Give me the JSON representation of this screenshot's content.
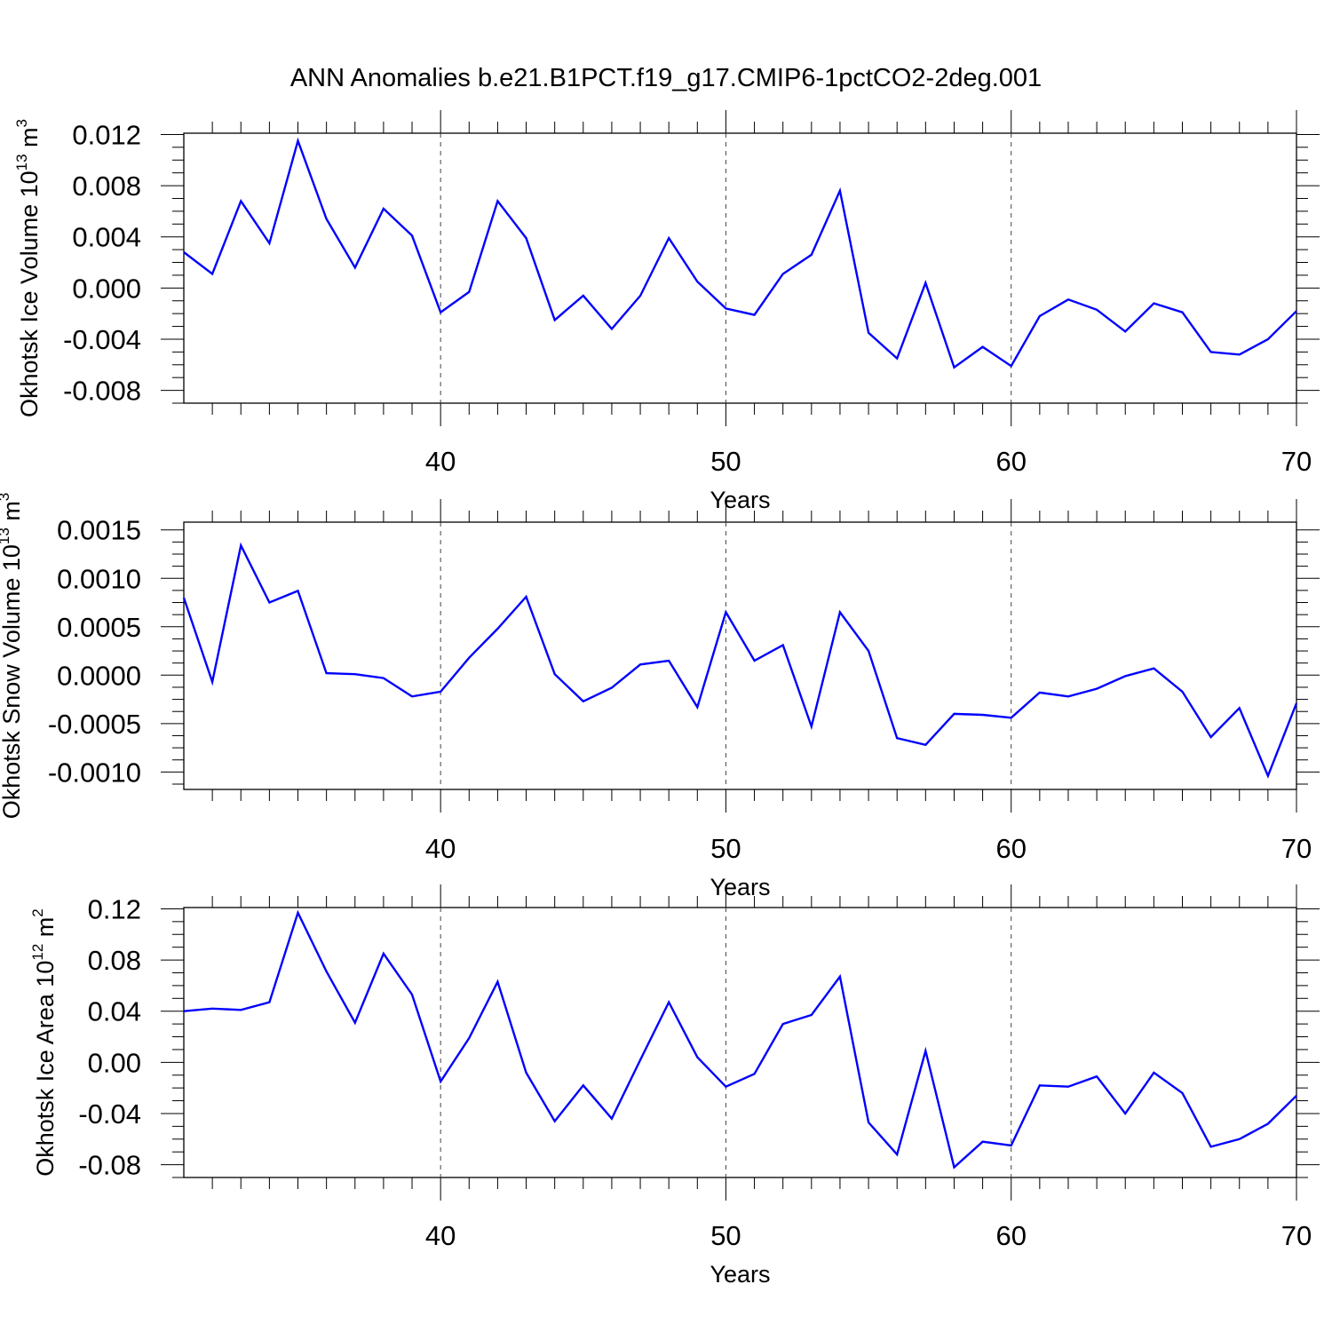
{
  "title": "ANN Anomalies b.e21.B1PCT.f19_g17.CMIP6-1pctCO2-2deg.001",
  "colors": {
    "line": "#0000ff",
    "axis": "#000000",
    "grid": "#444444"
  },
  "chart_data": [
    {
      "type": "line",
      "ylabel": "Okhotsk Ice Volume",
      "yunit": "10",
      "yunit_exp": "13",
      "yunit_suffix": " m",
      "yunit_suffix_exp": "3",
      "xlabel": "Years",
      "xlim": [
        31,
        70
      ],
      "ylim": [
        -0.009,
        0.0121
      ],
      "yticks": [
        0.012,
        0.008,
        0.004,
        0.0,
        -0.004,
        -0.008
      ],
      "ytick_labels": [
        "0.012",
        "0.008",
        "0.004",
        "0.000",
        "-0.004",
        "-0.008"
      ],
      "xticks": [
        40,
        50,
        60,
        70
      ],
      "xtick_labels": [
        "40",
        "50",
        "60",
        "70"
      ],
      "grid": "dashed vertical lines at 40, 50, 60",
      "series": [
        {
          "x": [
            31,
            32,
            33,
            34,
            35,
            36,
            37,
            38,
            39,
            40,
            41,
            42,
            43,
            44,
            45,
            46,
            47,
            48,
            49,
            50,
            51,
            52,
            53,
            54,
            55,
            56,
            57,
            58,
            59,
            60,
            61,
            62,
            63,
            64,
            65,
            66,
            67,
            68,
            69,
            70
          ],
          "values": [
            0.0028,
            0.0011,
            0.0068,
            0.0035,
            0.0115,
            0.0054,
            0.0016,
            0.0062,
            0.0041,
            -0.0019,
            -0.0003,
            0.0068,
            0.0039,
            -0.0025,
            -0.0006,
            -0.0032,
            -0.0006,
            0.0039,
            0.0005,
            -0.0016,
            -0.0021,
            0.0011,
            0.0026,
            0.0076,
            -0.0035,
            -0.0055,
            0.0004,
            -0.0062,
            -0.0046,
            -0.0061,
            -0.0022,
            -0.0009,
            -0.0017,
            -0.0034,
            -0.0012,
            -0.0019,
            -0.005,
            -0.0052,
            -0.004,
            -0.0018
          ]
        }
      ]
    },
    {
      "type": "line",
      "ylabel": "Okhotsk Snow Volume",
      "yunit": "10",
      "yunit_exp": "13",
      "yunit_suffix": " m",
      "yunit_suffix_exp": "3",
      "xlabel": "Years",
      "xlim": [
        31,
        70
      ],
      "ylim": [
        -0.00118,
        0.00158
      ],
      "yticks": [
        0.0015,
        0.001,
        0.0005,
        0.0,
        -0.0005,
        -0.001
      ],
      "ytick_labels": [
        "0.0015",
        "0.0010",
        "0.0005",
        "0.0000",
        "-0.0005",
        "-0.0010"
      ],
      "xticks": [
        40,
        50,
        60,
        70
      ],
      "xtick_labels": [
        "40",
        "50",
        "60",
        "70"
      ],
      "grid": "dashed vertical lines at 40, 50, 60",
      "series": [
        {
          "x": [
            31,
            32,
            33,
            34,
            35,
            36,
            37,
            38,
            39,
            40,
            41,
            42,
            43,
            44,
            45,
            46,
            47,
            48,
            49,
            50,
            51,
            52,
            53,
            54,
            55,
            56,
            57,
            58,
            59,
            60,
            61,
            62,
            63,
            64,
            65,
            66,
            67,
            68,
            69,
            70
          ],
          "values": [
            0.0008,
            -7e-05,
            0.00134,
            0.00075,
            0.00087,
            2e-05,
            1e-05,
            -3e-05,
            -0.00022,
            -0.00017,
            0.00018,
            0.00048,
            0.00081,
            1e-05,
            -0.00027,
            -0.00013,
            0.00011,
            0.00015,
            -0.00033,
            0.00065,
            0.00015,
            0.00031,
            -0.00053,
            0.00065,
            0.00025,
            -0.00065,
            -0.00072,
            -0.0004,
            -0.00041,
            -0.00044,
            -0.00018,
            -0.00022,
            -0.00014,
            -1e-05,
            7e-05,
            -0.00017,
            -0.00064,
            -0.00034,
            -0.00104,
            -0.00029
          ]
        }
      ]
    },
    {
      "type": "line",
      "ylabel": "Okhotsk Ice Area",
      "yunit": "10",
      "yunit_exp": "12",
      "yunit_suffix": " m",
      "yunit_suffix_exp": "2",
      "xlabel": "Years",
      "xlim": [
        31,
        70
      ],
      "ylim": [
        -0.09,
        0.121
      ],
      "yticks": [
        0.12,
        0.08,
        0.04,
        0.0,
        -0.04,
        -0.08
      ],
      "ytick_labels": [
        "0.12",
        "0.08",
        "0.04",
        "0.00",
        "-0.04",
        "-0.08"
      ],
      "xticks": [
        40,
        50,
        60,
        70
      ],
      "xtick_labels": [
        "40",
        "50",
        "60",
        "70"
      ],
      "grid": "dashed vertical lines at 40, 50, 60",
      "series": [
        {
          "x": [
            31,
            32,
            33,
            34,
            35,
            36,
            37,
            38,
            39,
            40,
            41,
            42,
            43,
            44,
            45,
            46,
            47,
            48,
            49,
            50,
            51,
            52,
            53,
            54,
            55,
            56,
            57,
            58,
            59,
            60,
            61,
            62,
            63,
            64,
            65,
            66,
            67,
            68,
            69,
            70
          ],
          "values": [
            0.04,
            0.042,
            0.041,
            0.047,
            0.117,
            0.071,
            0.031,
            0.085,
            0.053,
            -0.015,
            0.019,
            0.063,
            -0.008,
            -0.046,
            -0.018,
            -0.044,
            0.002,
            0.047,
            0.004,
            -0.019,
            -0.009,
            0.03,
            0.037,
            0.067,
            -0.047,
            -0.072,
            0.009,
            -0.082,
            -0.062,
            -0.065,
            -0.018,
            -0.019,
            -0.011,
            -0.04,
            -0.008,
            -0.024,
            -0.066,
            -0.06,
            -0.048,
            -0.026
          ]
        }
      ]
    }
  ]
}
